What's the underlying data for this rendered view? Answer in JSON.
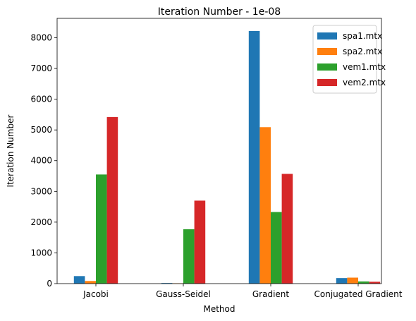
{
  "chart_data": {
    "type": "bar",
    "title": "Iteration Number - 1e-08",
    "xlabel": "Method",
    "ylabel": "Iteration Number",
    "categories": [
      "Jacobi",
      "Gauss-Seidel",
      "Gradient",
      "Conjugated Gradient"
    ],
    "series": [
      {
        "name": "spa1.mtx",
        "color": "#1f77b4",
        "values": [
          245,
          20,
          8220,
          180
        ]
      },
      {
        "name": "spa2.mtx",
        "color": "#ff7f0e",
        "values": [
          85,
          12,
          5090,
          195
        ]
      },
      {
        "name": "vem1.mtx",
        "color": "#2ca02c",
        "values": [
          3550,
          1770,
          2330,
          70
        ]
      },
      {
        "name": "vem2.mtx",
        "color": "#d62728",
        "values": [
          5420,
          2700,
          3570,
          60
        ]
      }
    ],
    "ylim": [
      0,
      8631
    ],
    "yticks": [
      0,
      1000,
      2000,
      3000,
      4000,
      5000,
      6000,
      7000,
      8000
    ],
    "legend_position": "top-right",
    "grid": false
  }
}
